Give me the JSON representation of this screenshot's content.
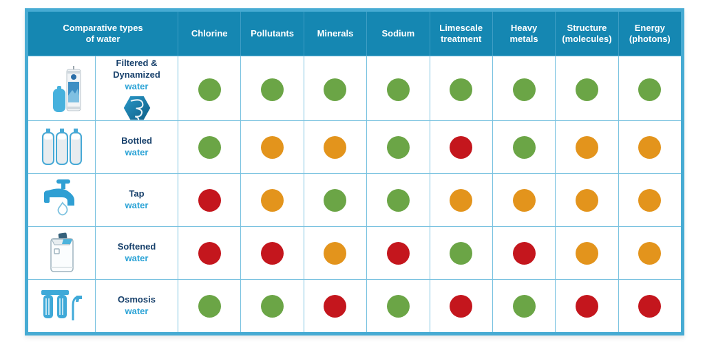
{
  "chart_data": {
    "type": "table",
    "title": "Comparative types of water",
    "columns": [
      "Chlorine",
      "Pollutants",
      "Minerals",
      "Sodium",
      "Limescale treatment",
      "Heavy metals",
      "Structure (molecules)",
      "Energy (photons)"
    ],
    "rows": [
      {
        "name": "Filtered & Dynamized",
        "sub": "water",
        "ratings": [
          "green",
          "green",
          "green",
          "green",
          "green",
          "green",
          "green",
          "green"
        ]
      },
      {
        "name": "Bottled",
        "sub": "water",
        "ratings": [
          "green",
          "orange",
          "orange",
          "green",
          "red",
          "green",
          "orange",
          "orange"
        ]
      },
      {
        "name": "Tap",
        "sub": "water",
        "ratings": [
          "red",
          "orange",
          "green",
          "green",
          "orange",
          "orange",
          "orange",
          "orange"
        ]
      },
      {
        "name": "Softened",
        "sub": "water",
        "ratings": [
          "red",
          "red",
          "orange",
          "red",
          "green",
          "red",
          "orange",
          "orange"
        ]
      },
      {
        "name": "Osmosis",
        "sub": "water",
        "ratings": [
          "green",
          "green",
          "red",
          "green",
          "red",
          "green",
          "red",
          "red"
        ]
      }
    ],
    "legend_position": "none",
    "grid": true
  },
  "icons": [
    "filter-dynamizer-icon",
    "vortex-icon",
    "water-bottles-icon",
    "tap-faucet-icon",
    "water-softener-icon",
    "osmosis-system-icon"
  ],
  "colors": {
    "green": "#6ba546",
    "orange": "#e3941c",
    "red": "#c4161d",
    "header_bg": "#1587b2",
    "border_outer": "#47abd3",
    "grid_line": "#79c2e0",
    "label_dark": "#17406b",
    "label_cyan": "#2ba3d6"
  }
}
